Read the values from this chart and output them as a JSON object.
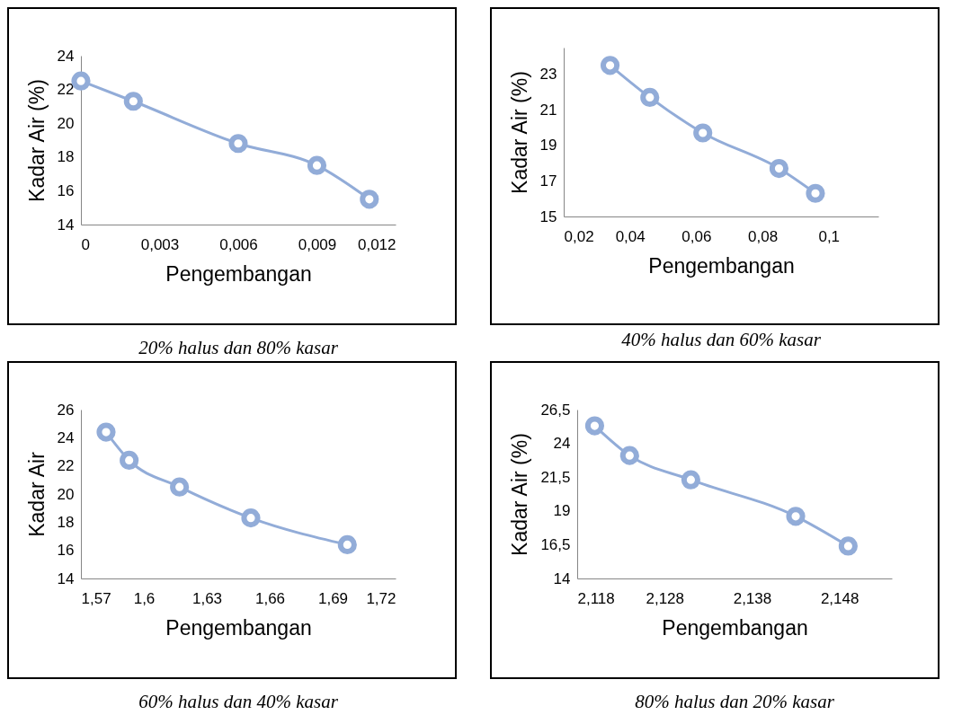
{
  "chart_data": [
    {
      "type": "line",
      "title": "20% halus dan 80% kasar",
      "xlabel": "Pengembangan",
      "ylabel": "Kadar Air (%)",
      "marker": "circle",
      "xlim": [
        0,
        0.012
      ],
      "xticks": [
        0,
        {
          "value": 0.003,
          "label": "0,003"
        },
        {
          "value": 0.006,
          "label": "0,006"
        },
        {
          "value": 0.009,
          "label": "0,009"
        },
        {
          "value": 0.012,
          "label": "0,012"
        }
      ],
      "ylim": [
        14,
        24
      ],
      "yticks": [
        14,
        16,
        18,
        20,
        22,
        24
      ],
      "series": [
        {
          "color": "#92acd8",
          "x": [
            0,
            0.002,
            0.006,
            0.009,
            0.011
          ],
          "values": [
            22.5,
            21.3,
            18.8,
            17.5,
            15.5
          ]
        }
      ]
    },
    {
      "type": "line",
      "title": "40% halus dan 60% kasar",
      "xlabel": "Pengembangan",
      "ylabel": "Kadar Air (%)",
      "marker": "circle",
      "xlim": [
        0.02,
        0.115
      ],
      "xticks": [
        {
          "value": 0.02,
          "label": "0,02"
        },
        {
          "value": 0.04,
          "label": "0,04"
        },
        {
          "value": 0.06,
          "label": "0,06"
        },
        {
          "value": 0.08,
          "label": "0,08"
        },
        {
          "value": 0.1,
          "label": "0,1"
        }
      ],
      "ylim": [
        15,
        24.5
      ],
      "yticks": [
        15,
        17,
        19,
        21,
        23
      ],
      "series": [
        {
          "color": "#92acd8",
          "x": [
            0.034,
            0.046,
            0.062,
            0.085,
            0.096
          ],
          "values": [
            23.5,
            21.7,
            19.7,
            17.7,
            16.3
          ]
        }
      ]
    },
    {
      "type": "line",
      "title": "60% halus dan 40% kasar",
      "xlabel": "Pengembangan",
      "ylabel": "Kadar Air",
      "marker": "circle",
      "xlim": [
        1.57,
        1.72
      ],
      "xticks": [
        {
          "value": 1.57,
          "label": "1,57"
        },
        {
          "value": 1.6,
          "label": "1,6"
        },
        {
          "value": 1.63,
          "label": "1,63"
        },
        {
          "value": 1.66,
          "label": "1,66"
        },
        {
          "value": 1.69,
          "label": "1,69"
        },
        {
          "value": 1.72,
          "label": "1,72"
        }
      ],
      "ylim": [
        14,
        26
      ],
      "yticks": [
        14,
        16,
        18,
        20,
        22,
        24,
        26
      ],
      "series": [
        {
          "color": "#92acd8",
          "x": [
            1.582,
            1.593,
            1.617,
            1.651,
            1.697
          ],
          "values": [
            24.4,
            22.4,
            20.5,
            18.3,
            16.4
          ]
        }
      ]
    },
    {
      "type": "line",
      "title": "80% halus dan 20% kasar",
      "xlabel": "Pengembangan",
      "ylabel": "Kadar Air (%)",
      "marker": "circle",
      "xlim": [
        2.118,
        2.154
      ],
      "xticks": [
        {
          "value": 2.118,
          "label": "2,118"
        },
        {
          "value": 2.128,
          "label": "2,128"
        },
        {
          "value": 2.138,
          "label": "2,138"
        },
        {
          "value": 2.148,
          "label": "2,148"
        }
      ],
      "ylim": [
        14,
        26.5
      ],
      "yticks": [
        14,
        {
          "value": 16.5,
          "label": "16,5"
        },
        19,
        {
          "value": 21.5,
          "label": "21,5"
        },
        24,
        {
          "value": 26.5,
          "label": "26,5"
        }
      ],
      "series": [
        {
          "color": "#92acd8",
          "x": [
            2.12,
            2.124,
            2.131,
            2.143,
            2.149
          ],
          "values": [
            25.3,
            23.1,
            21.3,
            18.6,
            16.4
          ]
        }
      ]
    }
  ]
}
